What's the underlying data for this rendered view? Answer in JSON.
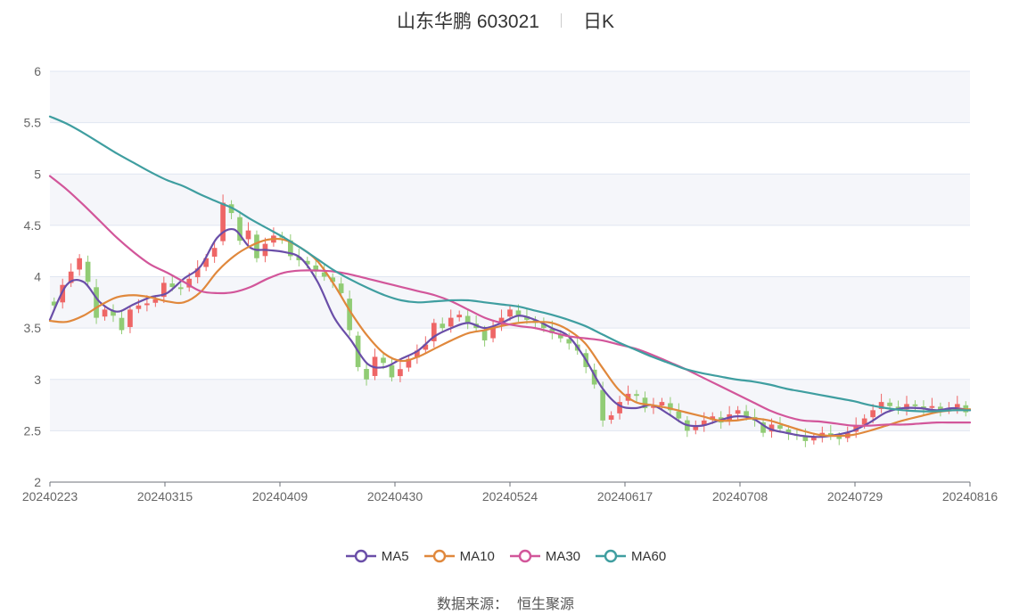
{
  "header": {
    "title": "山东华鹏 603021",
    "period": "日K"
  },
  "source": {
    "label": "数据来源：",
    "value": "恒生聚源"
  },
  "chart_data": {
    "type": "candlestick",
    "title": "山东华鹏 603021",
    "ylim": [
      2,
      6
    ],
    "yticks": [
      "2",
      "2.5",
      "3",
      "3.5",
      "4",
      "4.5",
      "5",
      "5.5",
      "6"
    ],
    "xticks": [
      "20240223",
      "20240315",
      "20240409",
      "20240430",
      "20240524",
      "20240617",
      "20240708",
      "20240729",
      "20240816"
    ],
    "grid": true,
    "legend_position": "bottom",
    "colors": {
      "up": "#ee6666",
      "down": "#91cc75",
      "grid_band": "#f5f6fa",
      "grid_line": "#e0e6f1"
    },
    "start_close": 3.72,
    "closes": [
      3.72,
      3.92,
      4.05,
      4.18,
      3.95,
      3.6,
      3.68,
      3.62,
      3.48,
      3.68,
      3.72,
      3.74,
      3.78,
      3.94,
      3.9,
      3.88,
      3.98,
      4.08,
      4.18,
      4.28,
      4.72,
      4.62,
      4.35,
      4.45,
      4.18,
      4.32,
      4.4,
      4.38,
      4.2,
      4.16,
      4.12,
      4.05,
      4.0,
      3.95,
      3.84,
      3.48,
      3.12,
      3.0,
      3.22,
      3.16,
      3.02,
      3.1,
      3.2,
      3.28,
      3.34,
      3.55,
      3.5,
      3.6,
      3.63,
      3.55,
      3.5,
      3.38,
      3.52,
      3.6,
      3.68,
      3.62,
      3.58,
      3.55,
      3.5,
      3.45,
      3.4,
      3.35,
      3.28,
      3.12,
      2.95,
      2.6,
      2.65,
      2.78,
      2.86,
      2.84,
      2.72,
      2.74,
      2.78,
      2.7,
      2.62,
      2.5,
      2.54,
      2.6,
      2.64,
      2.58,
      2.66,
      2.7,
      2.64,
      2.6,
      2.48,
      2.56,
      2.52,
      2.47,
      2.45,
      2.4,
      2.44,
      2.48,
      2.45,
      2.42,
      2.48,
      2.55,
      2.62,
      2.7,
      2.78,
      2.74,
      2.7,
      2.76,
      2.74,
      2.72,
      2.74,
      2.7,
      2.72,
      2.76,
      2.68
    ],
    "series": [
      {
        "name": "MA5",
        "color": "#6a4ea8",
        "values": [
          3.58,
          3.92,
          3.95,
          3.75,
          3.66,
          3.73,
          3.8,
          3.84,
          3.98,
          4.1,
          4.38,
          4.46,
          4.28,
          4.26,
          4.24,
          4.18,
          3.95,
          3.6,
          3.38,
          3.15,
          3.12,
          3.2,
          3.28,
          3.42,
          3.5,
          3.55,
          3.5,
          3.55,
          3.62,
          3.58,
          3.5,
          3.42,
          3.2,
          2.92,
          2.75,
          2.72,
          2.75,
          2.66,
          2.56,
          2.55,
          2.6,
          2.64,
          2.62,
          2.52,
          2.48,
          2.45,
          2.44,
          2.46,
          2.5,
          2.58,
          2.68,
          2.72,
          2.72,
          2.7,
          2.72,
          2.7
        ]
      },
      {
        "name": "MA10",
        "color": "#e0883c",
        "values": [
          3.57,
          3.56,
          3.62,
          3.72,
          3.8,
          3.82,
          3.8,
          3.76,
          3.75,
          3.85,
          4.05,
          4.2,
          4.3,
          4.36,
          4.36,
          4.28,
          4.15,
          3.92,
          3.65,
          3.42,
          3.25,
          3.18,
          3.22,
          3.3,
          3.38,
          3.45,
          3.48,
          3.52,
          3.55,
          3.56,
          3.55,
          3.48,
          3.35,
          3.12,
          2.9,
          2.78,
          2.75,
          2.72,
          2.68,
          2.64,
          2.6,
          2.6,
          2.62,
          2.6,
          2.55,
          2.5,
          2.46,
          2.45,
          2.46,
          2.5,
          2.55,
          2.6,
          2.64,
          2.68,
          2.7,
          2.71
        ]
      },
      {
        "name": "MA30",
        "color": "#d2569a",
        "values": [
          4.98,
          4.85,
          4.7,
          4.54,
          4.38,
          4.24,
          4.12,
          4.04,
          3.95,
          3.86,
          3.84,
          3.85,
          3.9,
          3.98,
          4.04,
          4.06,
          4.06,
          4.05,
          4.02,
          3.98,
          3.94,
          3.9,
          3.86,
          3.82,
          3.76,
          3.68,
          3.6,
          3.55,
          3.52,
          3.5,
          3.46,
          3.42,
          3.4,
          3.38,
          3.34,
          3.3,
          3.24,
          3.17,
          3.1,
          3.02,
          2.94,
          2.86,
          2.78,
          2.7,
          2.64,
          2.6,
          2.59,
          2.57,
          2.55,
          2.55,
          2.56,
          2.56,
          2.57,
          2.58,
          2.58,
          2.58
        ]
      },
      {
        "name": "MA60",
        "color": "#3f9ea0",
        "values": [
          5.56,
          5.49,
          5.4,
          5.3,
          5.2,
          5.11,
          5.02,
          4.94,
          4.88,
          4.8,
          4.73,
          4.66,
          4.56,
          4.47,
          4.38,
          4.28,
          4.17,
          4.06,
          3.97,
          3.89,
          3.82,
          3.77,
          3.75,
          3.76,
          3.77,
          3.77,
          3.75,
          3.73,
          3.71,
          3.67,
          3.63,
          3.58,
          3.52,
          3.44,
          3.36,
          3.29,
          3.22,
          3.16,
          3.1,
          3.06,
          3.03,
          3.0,
          2.98,
          2.95,
          2.91,
          2.88,
          2.85,
          2.82,
          2.79,
          2.75,
          2.72,
          2.7,
          2.69,
          2.69,
          2.7,
          2.7
        ]
      }
    ]
  }
}
